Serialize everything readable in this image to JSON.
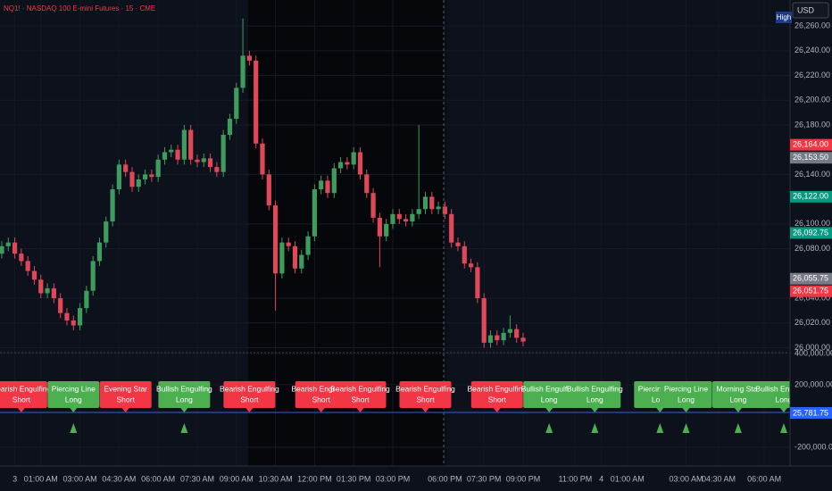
{
  "header": {
    "symbol_title": "NQ1! · NASDAQ 100 E-mini Futures · 15 · CME",
    "currency": "USD",
    "high_tag": "High"
  },
  "chart_data": {
    "type": "candlestick",
    "open": [
      26076,
      26082,
      26085,
      26076,
      26070,
      26062,
      26055,
      26044,
      26048,
      26040,
      26028,
      26022,
      26018,
      26032,
      26046,
      26070,
      26085,
      26102,
      26128,
      26148,
      26142,
      26130,
      26136,
      26140,
      26138,
      26152,
      26158,
      26160,
      26152,
      26176,
      26152,
      26150,
      26153,
      26146,
      26142,
      26172,
      26185,
      26210,
      26236,
      26232,
      26165,
      26140,
      26115,
      26060,
      26085,
      26082,
      26064,
      26075,
      26090,
      26128,
      26135,
      26125,
      26145,
      26150,
      26148,
      26158,
      26140,
      26125,
      26105,
      26090,
      26100,
      26108,
      26104,
      26102,
      26108,
      26112,
      26122,
      26112,
      26114,
      26108,
      26085,
      26082,
      26068,
      26065,
      26040,
      26004,
      26010,
      26006,
      26012,
      26015,
      26008
    ],
    "high": [
      26086,
      26089,
      26089,
      26080,
      26074,
      26066,
      26059,
      26052,
      26052,
      26044,
      26032,
      26026,
      26036,
      26050,
      26074,
      26089,
      26106,
      26132,
      26152,
      26152,
      26146,
      26140,
      26144,
      26144,
      26156,
      26162,
      26164,
      26164,
      26180,
      26180,
      26156,
      26157,
      26157,
      26150,
      26176,
      26189,
      26214,
      26266,
      26240,
      26236,
      26169,
      26144,
      26119,
      26089,
      26089,
      26086,
      26079,
      26094,
      26132,
      26139,
      26139,
      26149,
      26154,
      26154,
      26162,
      26162,
      26144,
      26129,
      26109,
      26104,
      26112,
      26112,
      26108,
      26112,
      26180,
      26126,
      26126,
      26118,
      26118,
      26112,
      26089,
      26086,
      26072,
      26069,
      26044,
      26014,
      26014,
      26016,
      26026,
      26019,
      26012
    ],
    "low": [
      26072,
      26078,
      26072,
      26066,
      26058,
      26051,
      26040,
      26040,
      26036,
      26024,
      26018,
      26014,
      26014,
      26028,
      26042,
      26066,
      26081,
      26098,
      26124,
      26138,
      26126,
      26126,
      26132,
      26134,
      26134,
      26148,
      26154,
      26148,
      26148,
      26148,
      26146,
      26146,
      26142,
      26138,
      26138,
      26168,
      26181,
      26206,
      26228,
      26161,
      26136,
      26111,
      26030,
      26056,
      26078,
      26060,
      26060,
      26071,
      26086,
      26124,
      26121,
      26121,
      26141,
      26144,
      26144,
      26136,
      26121,
      26101,
      26065,
      26086,
      26096,
      26100,
      26098,
      26098,
      26104,
      26108,
      26108,
      26108,
      26104,
      26081,
      26078,
      26064,
      26061,
      26036,
      26000,
      26000,
      26002,
      26002,
      26008,
      26004,
      26001
    ],
    "close": [
      26082,
      26085,
      26076,
      26070,
      26062,
      26055,
      26044,
      26048,
      26040,
      26028,
      26022,
      26018,
      26032,
      26046,
      26070,
      26085,
      26102,
      26128,
      26148,
      26142,
      26130,
      26136,
      26140,
      26138,
      26152,
      26158,
      26160,
      26152,
      26176,
      26152,
      26150,
      26153,
      26146,
      26142,
      26172,
      26185,
      26210,
      26236,
      26232,
      26165,
      26140,
      26115,
      26060,
      26085,
      26082,
      26064,
      26075,
      26090,
      26128,
      26135,
      26125,
      26145,
      26150,
      26148,
      26158,
      26140,
      26125,
      26105,
      26090,
      26100,
      26108,
      26104,
      26102,
      26108,
      26112,
      26122,
      26112,
      26114,
      26108,
      26085,
      26082,
      26068,
      26065,
      26040,
      26004,
      26010,
      26006,
      26012,
      26015,
      26008,
      26005
    ],
    "up_color": "#3f9c5f",
    "down_color": "#e0485a",
    "ylim": [
      25996,
      26281
    ],
    "yticks": [
      {
        "value": 26000,
        "label": "26,000.00"
      },
      {
        "value": 26020,
        "label": "26,020.00"
      },
      {
        "value": 26040,
        "label": "26,040.00"
      },
      {
        "value": 26080,
        "label": "26,080.00"
      },
      {
        "value": 26100,
        "label": "26,100.00"
      },
      {
        "value": 26140,
        "label": "26,140.00"
      },
      {
        "value": 26180,
        "label": "26,180.00"
      },
      {
        "value": 26200,
        "label": "26,200.00"
      },
      {
        "value": 26220,
        "label": "26,220.00"
      },
      {
        "value": 26240,
        "label": "26,240.00"
      },
      {
        "value": 26260,
        "label": "26,260.00"
      }
    ],
    "xlim": [
      -0.27,
      120.96
    ],
    "xticks": [
      {
        "value": 2,
        "label": "3"
      },
      {
        "value": 6,
        "label": "01:00 AM"
      },
      {
        "value": 12,
        "label": "03:00 AM"
      },
      {
        "value": 18,
        "label": "04:30 AM"
      },
      {
        "value": 24,
        "label": "06:00 AM"
      },
      {
        "value": 30,
        "label": "07:30 AM"
      },
      {
        "value": 36,
        "label": "09:00 AM"
      },
      {
        "value": 42,
        "label": "10:30 AM"
      },
      {
        "value": 48,
        "label": "12:00 PM"
      },
      {
        "value": 54,
        "label": "01:30 PM"
      },
      {
        "value": 60,
        "label": "03:00 PM"
      },
      {
        "value": 68,
        "label": "06:00 PM"
      },
      {
        "value": 74,
        "label": "07:30 PM"
      },
      {
        "value": 80,
        "label": "09:00 PM"
      },
      {
        "value": 88,
        "label": "11:00 PM"
      },
      {
        "value": 92,
        "label": "4"
      },
      {
        "value": 96,
        "label": "01:00 AM"
      },
      {
        "value": 105,
        "label": "03:00 AM"
      },
      {
        "value": 110,
        "label": "04:30 AM"
      },
      {
        "value": 117,
        "label": "06:00 AM"
      }
    ],
    "grid": true,
    "price_labels": [
      {
        "value": 26164,
        "label": "26,164.00",
        "color": "#f23645"
      },
      {
        "value": 26153.5,
        "label": "26,153.50",
        "color": "#787b86"
      },
      {
        "value": 26122,
        "label": "26,122.00",
        "color": "#089981"
      },
      {
        "value": 26092.75,
        "label": "26,092.75",
        "color": "#089981"
      },
      {
        "value": 26055.75,
        "label": "26,055.75",
        "color": "#787b86"
      },
      {
        "value": 26051.75,
        "label": "26,051.75",
        "color": "#f23645"
      }
    ],
    "indicator": {
      "ylim": [
        -280000,
        405000
      ],
      "yticks": [
        {
          "value": 400000,
          "label": "400,000.00"
        },
        {
          "value": 200000,
          "label": "200,000.00"
        },
        {
          "value": -200000,
          "label": "-200,000.00"
        }
      ],
      "line_label": "25,781.75",
      "signals": [
        {
          "x": 3,
          "pattern": "Bearish Engulfing",
          "direction": "Short",
          "color": "#f23645"
        },
        {
          "x": 11,
          "pattern": "Piercing Line",
          "direction": "Long",
          "color": "#4caf50"
        },
        {
          "x": 19,
          "pattern": "Evening Star",
          "direction": "Short",
          "color": "#f23645"
        },
        {
          "x": 28,
          "pattern": "Bullish Engulfing",
          "direction": "Long",
          "color": "#4caf50"
        },
        {
          "x": 38,
          "pattern": "Bearish Engulfing",
          "direction": "Short",
          "color": "#f23645"
        },
        {
          "x": 49,
          "pattern": "Bearish Engulfing",
          "direction": "Short",
          "color": "#f23645"
        },
        {
          "x": 55,
          "pattern": "Bearish Engulfing",
          "direction": "Short",
          "color": "#f23645"
        },
        {
          "x": 65,
          "pattern": "Bearish Engulfing",
          "direction": "Short",
          "color": "#f23645"
        },
        {
          "x": 76,
          "pattern": "Bearish Engulfing",
          "direction": "Short",
          "color": "#f23645"
        },
        {
          "x": 84,
          "pattern": "Bullish Engulfing",
          "direction": "Long",
          "color": "#4caf50"
        },
        {
          "x": 91,
          "pattern": "Bullish Engulfing",
          "direction": "Long",
          "color": "#4caf50"
        },
        {
          "x": 101,
          "pattern": "Piercing Line",
          "direction": "Long",
          "color": "#4caf50"
        },
        {
          "x": 105,
          "pattern": "Piercing Line",
          "direction": "Long",
          "color": "#4caf50"
        },
        {
          "x": 113,
          "pattern": "Morning Star",
          "direction": "Long",
          "color": "#4caf50"
        },
        {
          "x": 120,
          "pattern": "Bullish Engulfing",
          "direction": "Long",
          "color": "#4caf50"
        }
      ]
    }
  }
}
